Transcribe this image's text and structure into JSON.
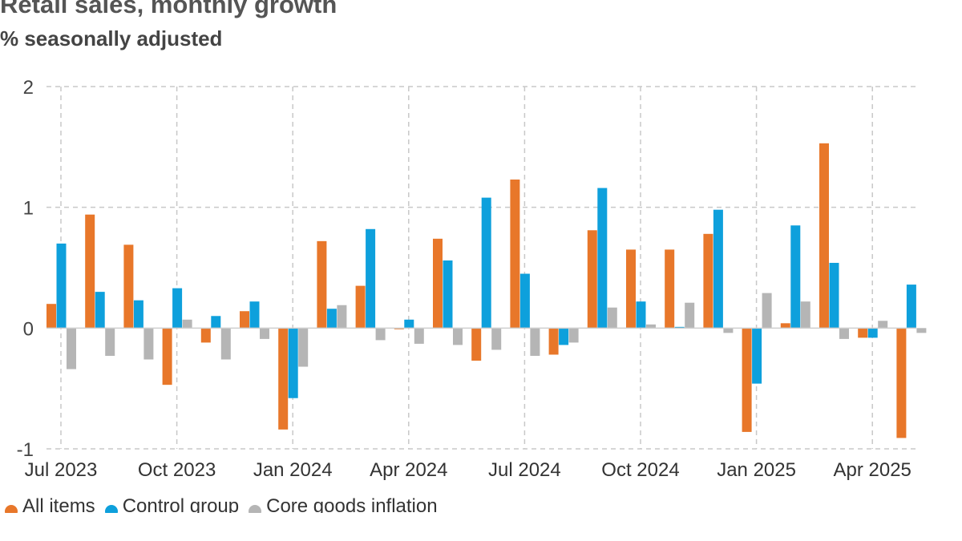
{
  "colors": {
    "all_items": "#e8772a",
    "control_group": "#0ea0dc",
    "core_goods": "#b5b5b5",
    "grid": "#c8c8c8",
    "zero_line": "#cfcfcf"
  },
  "chart_data": {
    "type": "bar",
    "title": "Retail sales, monthly growth",
    "subtitle": "% seasonally adjusted",
    "xlabel": "",
    "ylabel": "",
    "ylim": [
      -1,
      2
    ],
    "yticks": [
      "2",
      "1",
      "0",
      "-1"
    ],
    "xtick_labels": [
      "Jul 2023",
      "Oct 2023",
      "Jan 2024",
      "Apr 2024",
      "Jul 2024",
      "Oct 2024",
      "Jan 2025",
      "Apr 2025"
    ],
    "categories": [
      "Jul 2023",
      "Aug 2023",
      "Sep 2023",
      "Oct 2023",
      "Nov 2023",
      "Dec 2023",
      "Jan 2024",
      "Feb 2024",
      "Mar 2024",
      "Apr 2024",
      "May 2024",
      "Jun 2024",
      "Jul 2024",
      "Aug 2024",
      "Sep 2024",
      "Oct 2024",
      "Nov 2024",
      "Dec 2024",
      "Jan 2025",
      "Feb 2025",
      "Mar 2025",
      "Apr 2025",
      "May 2025"
    ],
    "grid": true,
    "legend_position": "bottom-left",
    "series": [
      {
        "name": "All items",
        "color_key": "all_items",
        "values": [
          0.2,
          0.94,
          0.69,
          -0.47,
          -0.12,
          0.14,
          -0.84,
          0.72,
          0.35,
          -0.01,
          0.74,
          -0.27,
          1.23,
          -0.22,
          0.81,
          0.65,
          0.65,
          0.78,
          -0.86,
          0.04,
          1.53,
          -0.08,
          -0.91
        ]
      },
      {
        "name": "Control group",
        "color_key": "control_group",
        "values": [
          0.7,
          0.3,
          0.23,
          0.33,
          0.1,
          0.22,
          -0.58,
          0.16,
          0.82,
          0.07,
          0.56,
          1.08,
          0.45,
          -0.14,
          1.16,
          0.22,
          0.01,
          0.98,
          -0.46,
          0.85,
          0.54,
          -0.08,
          0.36
        ]
      },
      {
        "name": "Core goods inflation",
        "color_key": "core_goods",
        "values": [
          -0.34,
          -0.23,
          -0.26,
          0.07,
          -0.26,
          -0.09,
          -0.32,
          0.19,
          -0.1,
          -0.13,
          -0.14,
          -0.18,
          -0.23,
          -0.12,
          0.17,
          0.03,
          0.21,
          -0.04,
          0.29,
          0.22,
          -0.09,
          0.06,
          -0.04
        ]
      }
    ]
  }
}
